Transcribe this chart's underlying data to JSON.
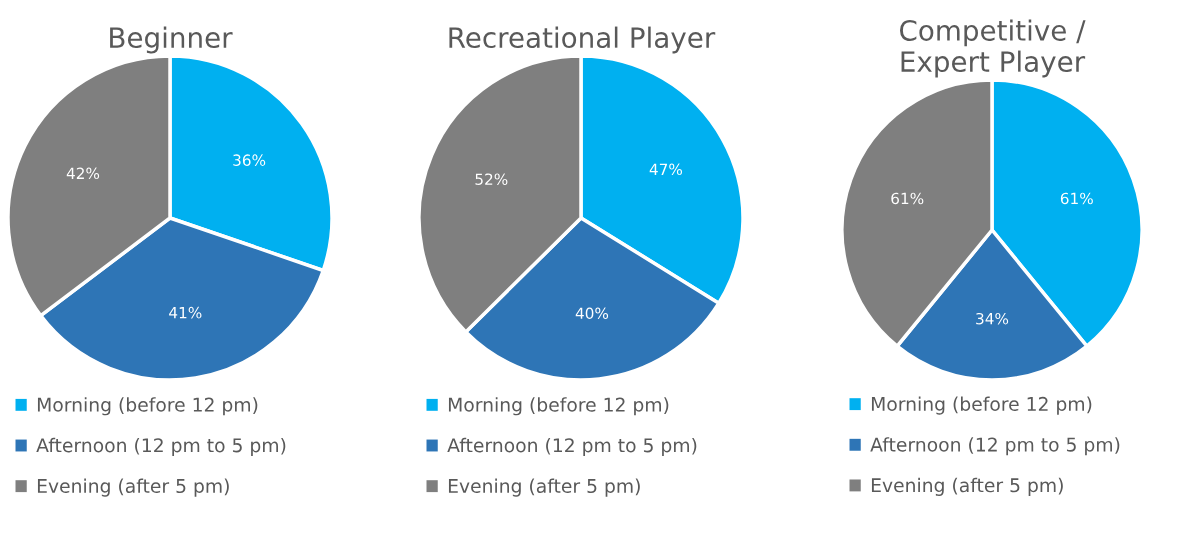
{
  "chart_data": [
    {
      "type": "pie",
      "title": "Beginner",
      "categories": [
        "Morning (before 12 pm)",
        "Afternoon (12 pm to 5 pm)",
        "Evening (after 5 pm)"
      ],
      "values": [
        36,
        41,
        42
      ],
      "value_labels": [
        "36%",
        "41%",
        "42%"
      ],
      "colors": [
        "#00b0f0",
        "#2e75b6",
        "#7f7f7f"
      ],
      "legend": "bottom"
    },
    {
      "type": "pie",
      "title": "Recreational Player",
      "categories": [
        "Morning (before 12 pm)",
        "Afternoon (12 pm to 5 pm)",
        "Evening (after 5 pm)"
      ],
      "values": [
        47,
        40,
        52
      ],
      "value_labels": [
        "47%",
        "40%",
        "52%"
      ],
      "colors": [
        "#00b0f0",
        "#2e75b6",
        "#7f7f7f"
      ],
      "legend": "bottom"
    },
    {
      "type": "pie",
      "title": "Competitive /\nExpert Player",
      "categories": [
        "Morning (before 12 pm)",
        "Afternoon (12 pm to 5 pm)",
        "Evening (after 5 pm)"
      ],
      "values": [
        61,
        34,
        61
      ],
      "value_labels": [
        "61%",
        "34%",
        "61%"
      ],
      "colors": [
        "#00b0f0",
        "#2e75b6",
        "#7f7f7f"
      ],
      "legend": "bottom"
    }
  ]
}
